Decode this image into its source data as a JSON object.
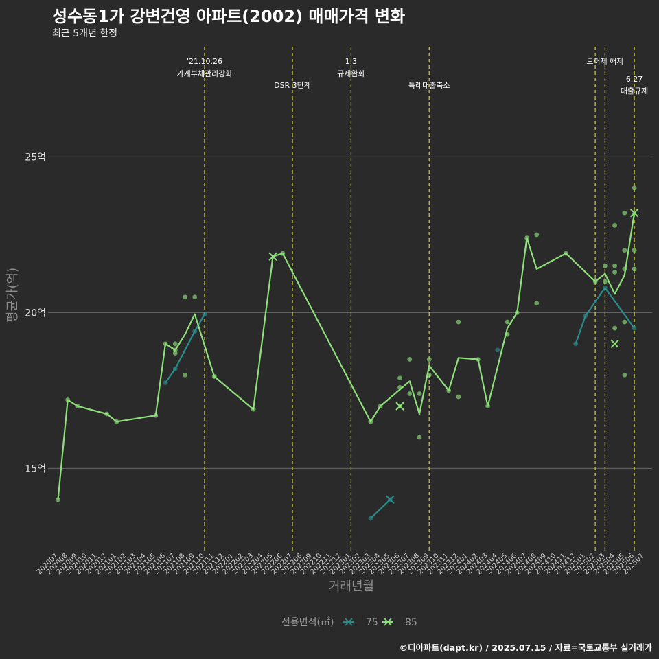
{
  "header": {
    "title": "성수동1가 강변건영 아파트(2002) 매매가격 변화",
    "subtitle": "최근 5개년 한정"
  },
  "footer": {
    "source": "©디아파트(dapt.kr) / 2025.07.15 / 자료=국토교통부 실거래가"
  },
  "colors": {
    "background": "#2b2a2b",
    "grid": "#6a6a6a",
    "vline": "#c8c826",
    "s75": "#2a8c8c",
    "s85": "#8ee07a"
  },
  "chart_data": {
    "type": "line",
    "title": "성수동1가 강변건영 아파트(2002) 매매가격 변화",
    "subtitle": "최근 5개년 한정",
    "xlabel": "거래년월",
    "ylabel": "평균가(억)",
    "ylim": [
      12.3,
      28.6
    ],
    "yticks": [
      15,
      20,
      25
    ],
    "ytick_labels": [
      "15억",
      "20억",
      "25억"
    ],
    "categories": [
      "202007",
      "202008",
      "202009",
      "202010",
      "202011",
      "202012",
      "202101",
      "202102",
      "202103",
      "202104",
      "202105",
      "202106",
      "202107",
      "202108",
      "202109",
      "202110",
      "202111",
      "202112",
      "202201",
      "202202",
      "202203",
      "202204",
      "202205",
      "202206",
      "202207",
      "202208",
      "202209",
      "202210",
      "202211",
      "202212",
      "202301",
      "202302",
      "202303",
      "202304",
      "202305",
      "202306",
      "202307",
      "202308",
      "202309",
      "202310",
      "202311",
      "202312",
      "202401",
      "202402",
      "202403",
      "202404",
      "202405",
      "202406",
      "202407",
      "202408",
      "202409",
      "202410",
      "202411",
      "202412",
      "202501",
      "202502",
      "202503",
      "202504",
      "202505",
      "202506",
      "202507"
    ],
    "legend_title": "전용면적(㎡)",
    "series": [
      {
        "name": "75",
        "segments": [
          [
            [
              11,
              17.75
            ],
            [
              12,
              18.2
            ],
            [
              14,
              19.4
            ],
            [
              15,
              19.95
            ]
          ],
          [
            [
              32,
              13.4
            ],
            [
              34,
              14.0
            ]
          ],
          [
            [
              53,
              19.0
            ],
            [
              54,
              19.9
            ],
            [
              56,
              20.8
            ],
            [
              59,
              19.5
            ]
          ]
        ],
        "x_markers": [
          [
            34,
            14.0
          ]
        ],
        "points": [
          [
            11,
            17.75
          ],
          [
            12,
            18.2
          ],
          [
            14,
            19.4
          ],
          [
            15,
            19.95
          ],
          [
            32,
            13.4
          ],
          [
            34,
            14.0
          ],
          [
            45,
            18.8
          ],
          [
            53,
            19.0
          ],
          [
            54,
            19.9
          ],
          [
            56,
            20.8
          ],
          [
            59,
            19.5
          ]
        ]
      },
      {
        "name": "85",
        "segments": [
          [
            [
              0,
              14.0
            ],
            [
              1,
              17.2
            ],
            [
              2,
              17.0
            ],
            [
              5,
              16.75
            ],
            [
              6,
              16.5
            ],
            [
              10,
              16.7
            ],
            [
              11,
              19.0
            ],
            [
              12,
              18.8
            ],
            [
              13,
              19.3
            ],
            [
              14,
              19.95
            ],
            [
              16,
              17.95
            ],
            [
              20,
              16.9
            ],
            [
              22,
              21.8
            ],
            [
              23,
              21.9
            ],
            [
              32,
              16.5
            ],
            [
              33,
              17.0
            ],
            [
              36,
              17.8
            ],
            [
              37,
              16.75
            ],
            [
              38,
              18.3
            ],
            [
              40,
              17.5
            ],
            [
              41,
              18.55
            ],
            [
              43,
              18.5
            ],
            [
              44,
              17.0
            ],
            [
              46,
              19.5
            ],
            [
              47,
              20.0
            ],
            [
              48,
              22.4
            ],
            [
              49,
              21.4
            ],
            [
              52,
              21.9
            ],
            [
              55,
              21.0
            ],
            [
              56,
              21.25
            ],
            [
              57,
              20.6
            ],
            [
              58,
              21.2
            ],
            [
              59,
              23.2
            ]
          ]
        ],
        "x_markers": [
          [
            22,
            21.8
          ],
          [
            35,
            17.0
          ],
          [
            57,
            19.0
          ],
          [
            59,
            23.2
          ]
        ],
        "points": [
          [
            0,
            14.0
          ],
          [
            1,
            17.2
          ],
          [
            2,
            17.0
          ],
          [
            5,
            16.75
          ],
          [
            6,
            16.5
          ],
          [
            10,
            16.7
          ],
          [
            11,
            19.0
          ],
          [
            12,
            18.8
          ],
          [
            12,
            18.7
          ],
          [
            12,
            19.0
          ],
          [
            13,
            18.0
          ],
          [
            13,
            20.5
          ],
          [
            14,
            20.5
          ],
          [
            16,
            17.95
          ],
          [
            20,
            16.9
          ],
          [
            23,
            21.9
          ],
          [
            32,
            16.5
          ],
          [
            33,
            17.0
          ],
          [
            35,
            17.6
          ],
          [
            35,
            17.9
          ],
          [
            36,
            17.4
          ],
          [
            36,
            18.5
          ],
          [
            37,
            16.0
          ],
          [
            37,
            17.4
          ],
          [
            38,
            18.0
          ],
          [
            38,
            18.5
          ],
          [
            40,
            17.5
          ],
          [
            41,
            17.3
          ],
          [
            41,
            19.7
          ],
          [
            43,
            18.5
          ],
          [
            44,
            17.0
          ],
          [
            46,
            19.3
          ],
          [
            46,
            19.7
          ],
          [
            47,
            20.0
          ],
          [
            48,
            22.4
          ],
          [
            49,
            22.5
          ],
          [
            49,
            20.3
          ],
          [
            52,
            21.9
          ],
          [
            55,
            21.0
          ],
          [
            56,
            21.0
          ],
          [
            56,
            21.5
          ],
          [
            57,
            19.5
          ],
          [
            57,
            21.3
          ],
          [
            57,
            21.5
          ],
          [
            57,
            22.8
          ],
          [
            58,
            18.0
          ],
          [
            58,
            19.7
          ],
          [
            58,
            21.4
          ],
          [
            58,
            22.0
          ],
          [
            58,
            23.2
          ],
          [
            59,
            21.4
          ],
          [
            59,
            22.0
          ],
          [
            59,
            24.0
          ]
        ]
      }
    ],
    "vlines": [
      {
        "x": 15,
        "text1": "'21.10.26",
        "text2": "가계부채관리강화",
        "row": 1
      },
      {
        "x": 24,
        "text1": "",
        "text2": "DSR 3단계",
        "row": 2
      },
      {
        "x": 30,
        "text1": "1.3",
        "text2": "규제완화",
        "row": 1
      },
      {
        "x": 38,
        "text1": "",
        "text2": "특례대출축소",
        "row": 2
      },
      {
        "x": 55,
        "text1": "",
        "text2": "",
        "row": 0
      },
      {
        "x": 56,
        "text1": "토허제 해제",
        "text2": "",
        "row": 1
      },
      {
        "x": 59,
        "text1": "6.27",
        "text2": "대출규제",
        "row": 3
      }
    ]
  }
}
